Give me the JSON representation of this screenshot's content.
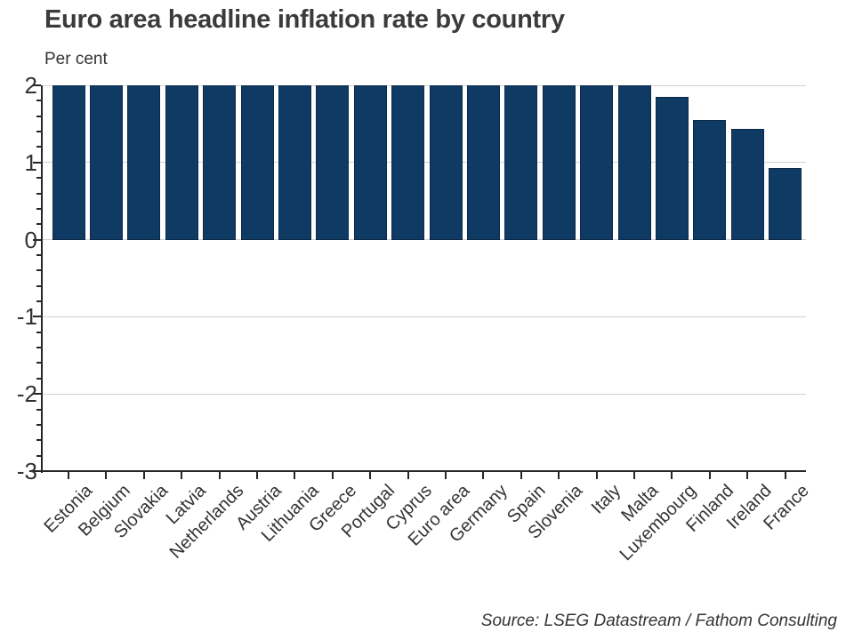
{
  "title": "Euro area headline inflation rate by country",
  "subtitle": "Per cent",
  "source_note": "Source: LSEG Datastream / Fathom Consulting",
  "chart_data": {
    "type": "bar",
    "title": "Euro area headline inflation rate by country",
    "ylabel": "Per cent",
    "categories": [
      "Estonia",
      "Belgium",
      "Slovakia",
      "Latvia",
      "Netherlands",
      "Austria",
      "Lithuania",
      "Greece",
      "Portugal",
      "Cyprus",
      "Euro area",
      "Germany",
      "Spain",
      "Slovenia",
      "Italy",
      "Malta",
      "Luxembourg",
      "Finland",
      "Ireland",
      "France"
    ],
    "values": [
      2.0,
      2.0,
      2.0,
      2.0,
      2.0,
      2.0,
      2.0,
      2.0,
      2.0,
      2.0,
      2.0,
      2.0,
      2.0,
      2.0,
      2.0,
      2.0,
      1.85,
      1.55,
      1.44,
      0.93
    ],
    "xlabel": "",
    "ylim": [
      -3,
      2
    ],
    "y_ticks": [
      2,
      1,
      0,
      -1,
      -2,
      -3
    ],
    "y_minor_tick_step": 0.2,
    "grid": "horizontal",
    "legend": "none",
    "label_rotation_deg": 45,
    "colors": {
      "bar": "#0f3a63",
      "axis": "#262626",
      "grid": "#d2d2d2",
      "text": "#333333",
      "title": "#3b3b3b"
    }
  }
}
